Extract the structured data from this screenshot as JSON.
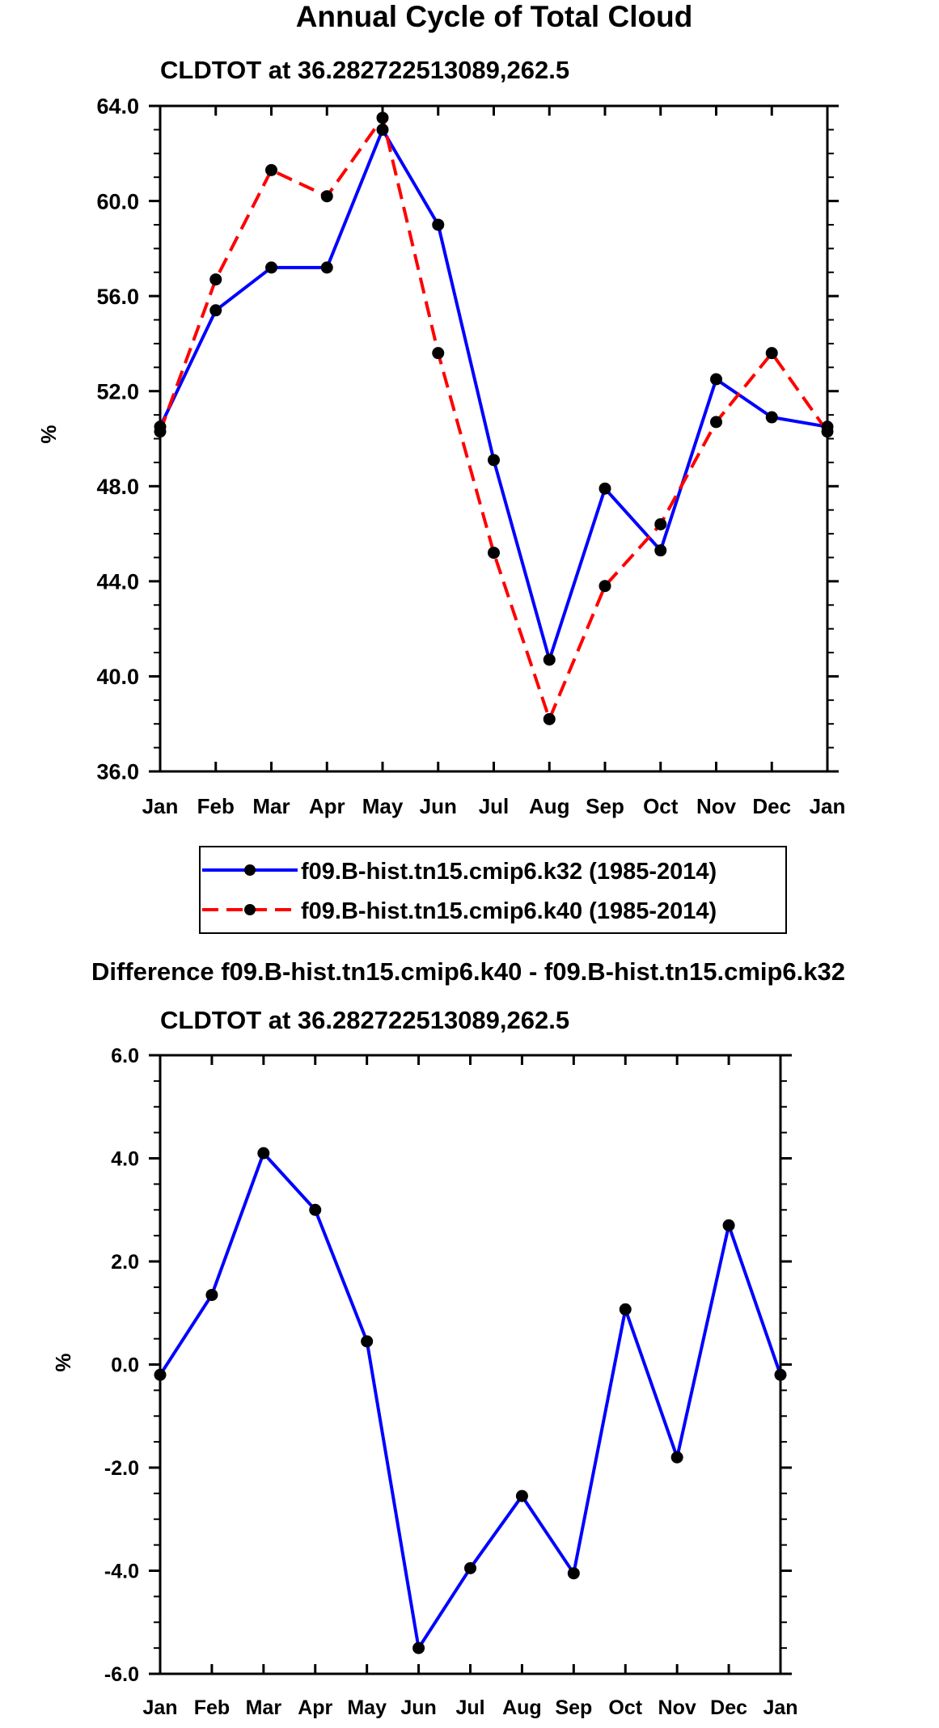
{
  "chart_data": [
    {
      "type": "line",
      "title": "Annual Cycle of Total Cloud",
      "subtitle": "CLDTOT at 36.282722513089,262.5",
      "xlabel": "",
      "ylabel": "%",
      "categories": [
        "Jan",
        "Feb",
        "Mar",
        "Apr",
        "May",
        "Jun",
        "Jul",
        "Aug",
        "Sep",
        "Oct",
        "Nov",
        "Dec",
        "Jan"
      ],
      "ylim": [
        36.0,
        64.0
      ],
      "yticks": [
        "36.0",
        "40.0",
        "44.0",
        "48.0",
        "52.0",
        "56.0",
        "60.0",
        "64.0"
      ],
      "ytick_values": [
        36,
        40,
        44,
        48,
        52,
        56,
        60,
        64
      ],
      "legend": "below",
      "grid": false,
      "series": [
        {
          "name": "f09.B-hist.tn15.cmip6.k32 (1985-2014)",
          "color": "#0000ff",
          "dash": "solid",
          "values": [
            50.5,
            55.4,
            57.2,
            57.2,
            63.0,
            59.0,
            49.1,
            40.7,
            47.9,
            45.3,
            52.5,
            50.9,
            50.5
          ]
        },
        {
          "name": "f09.B-hist.tn15.cmip6.k40 (1985-2014)",
          "color": "#ff0000",
          "dash": "dashed",
          "values": [
            50.3,
            56.7,
            61.3,
            60.2,
            63.5,
            53.6,
            45.2,
            38.2,
            43.8,
            46.4,
            50.7,
            53.6,
            50.3
          ]
        }
      ]
    },
    {
      "type": "line",
      "title": "Difference f09.B-hist.tn15.cmip6.k40 - f09.B-hist.tn15.cmip6.k32",
      "subtitle": "CLDTOT at 36.282722513089,262.5",
      "xlabel": "",
      "ylabel": "%",
      "categories": [
        "Jan",
        "Feb",
        "Mar",
        "Apr",
        "May",
        "Jun",
        "Jul",
        "Aug",
        "Sep",
        "Oct",
        "Nov",
        "Dec",
        "Jan"
      ],
      "ylim": [
        -6.0,
        6.0
      ],
      "yticks": [
        "-6.0",
        "-4.0",
        "-2.0",
        "0.0",
        "2.0",
        "4.0",
        "6.0"
      ],
      "ytick_values": [
        -6,
        -4,
        -2,
        0,
        2,
        4,
        6
      ],
      "grid": false,
      "series": [
        {
          "name": "Difference",
          "color": "#0000ff",
          "dash": "solid",
          "values": [
            -0.2,
            1.35,
            4.1,
            3.0,
            0.45,
            -5.5,
            -3.95,
            -2.55,
            -4.05,
            1.07,
            -1.8,
            2.7,
            -0.2
          ]
        }
      ]
    }
  ]
}
